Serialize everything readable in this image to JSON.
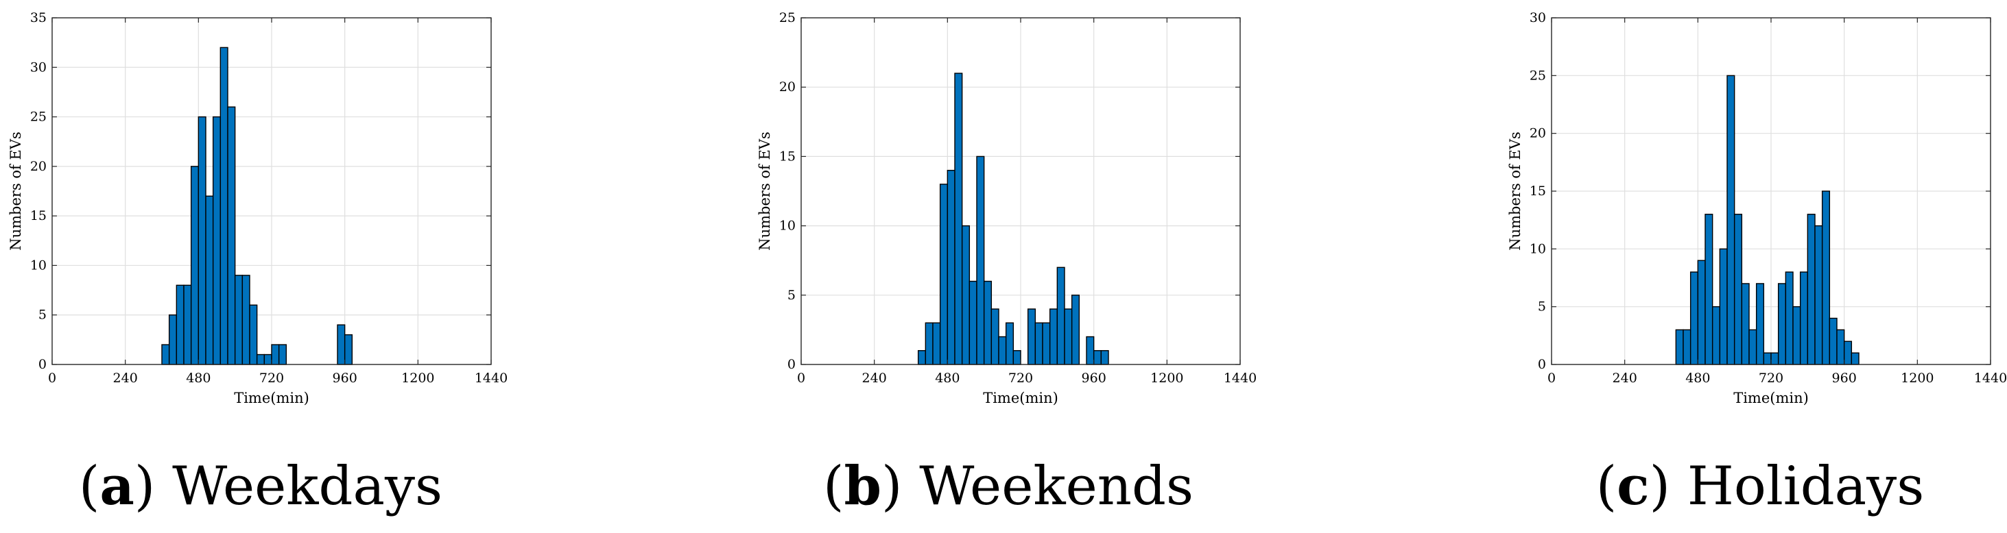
{
  "chart_data": [
    {
      "type": "bar",
      "panel_letter": "a",
      "caption": "Weekdays",
      "xlabel": "Time(min)",
      "ylabel": "Numbers of EVs",
      "xlim": [
        0,
        1440
      ],
      "ylim": [
        0,
        35
      ],
      "xticks": [
        0,
        240,
        480,
        720,
        960,
        1200,
        1440
      ],
      "yticks": [
        0,
        5,
        10,
        15,
        20,
        25,
        30,
        35
      ],
      "grid": true,
      "bin_width": 24,
      "bin_starts": [
        360,
        384,
        408,
        432,
        456,
        480,
        504,
        528,
        552,
        576,
        600,
        624,
        648,
        672,
        696,
        720,
        744,
        768,
        792,
        816,
        840,
        864,
        888,
        912,
        936,
        960
      ],
      "values": [
        2,
        5,
        8,
        8,
        20,
        25,
        17,
        25,
        32,
        26,
        9,
        9,
        6,
        1,
        1,
        2,
        2,
        0,
        0,
        0,
        0,
        0,
        0,
        0,
        4,
        3
      ],
      "bar_color": "#0072bd"
    },
    {
      "type": "bar",
      "panel_letter": "b",
      "caption": "Weekends",
      "xlabel": "Time(min)",
      "ylabel": "Numbers of EVs",
      "xlim": [
        0,
        1440
      ],
      "ylim": [
        0,
        25
      ],
      "xticks": [
        0,
        240,
        480,
        720,
        960,
        1200,
        1440
      ],
      "yticks": [
        0,
        5,
        10,
        15,
        20,
        25
      ],
      "grid": true,
      "bin_width": 24,
      "bin_starts": [
        384,
        408,
        432,
        456,
        480,
        504,
        528,
        552,
        576,
        600,
        624,
        648,
        672,
        696,
        720,
        744,
        768,
        792,
        816,
        840,
        864,
        888,
        912,
        936,
        960,
        984,
        1008,
        1032,
        1056,
        1080
      ],
      "values": [
        1,
        3,
        3,
        13,
        14,
        21,
        10,
        6,
        15,
        6,
        4,
        2,
        3,
        1,
        0,
        4,
        3,
        3,
        4,
        7,
        4,
        5,
        0,
        2,
        1,
        1,
        0,
        0,
        0,
        0
      ],
      "bar_color": "#0072bd"
    },
    {
      "type": "bar",
      "panel_letter": "c",
      "caption": "Holidays",
      "xlabel": "Time(min)",
      "ylabel": "Numbers of EVs",
      "xlim": [
        0,
        1440
      ],
      "ylim": [
        0,
        30
      ],
      "xticks": [
        0,
        240,
        480,
        720,
        960,
        1200,
        1440
      ],
      "yticks": [
        0,
        5,
        10,
        15,
        20,
        25,
        30
      ],
      "grid": true,
      "bin_width": 24,
      "bin_starts": [
        408,
        432,
        456,
        480,
        504,
        528,
        552,
        576,
        600,
        624,
        648,
        672,
        696,
        720,
        744,
        768,
        792,
        816,
        840,
        864,
        888,
        912,
        936,
        960,
        984,
        1008,
        1032,
        1056,
        1080
      ],
      "values": [
        3,
        3,
        8,
        9,
        13,
        5,
        10,
        25,
        13,
        7,
        3,
        7,
        1,
        1,
        7,
        8,
        5,
        8,
        13,
        12,
        15,
        4,
        3,
        2,
        1,
        0,
        0,
        0,
        0
      ],
      "bar_color": "#0072bd"
    }
  ]
}
